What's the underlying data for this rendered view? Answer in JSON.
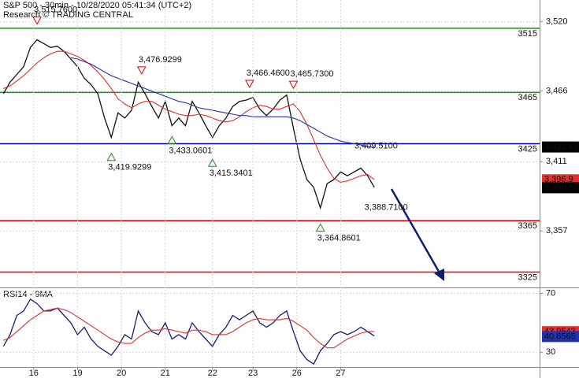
{
  "chart_data": [
    {
      "type": "line",
      "title": "S&P 500 - 30min - 10/28/2020 05:41:34 (UTC+2)",
      "subtitle": "Research © TRADING CENTRAL",
      "x": [
        0,
        2,
        4,
        6,
        8,
        10,
        12,
        14,
        16,
        18,
        20,
        22,
        24,
        26,
        28,
        30,
        32,
        34,
        36,
        38,
        40,
        42,
        44,
        46,
        48,
        50,
        52,
        54,
        56,
        58,
        60,
        62,
        64,
        66,
        68,
        70,
        72,
        74,
        76,
        78,
        80,
        82,
        84,
        86,
        88,
        90,
        92,
        94,
        96,
        98,
        100,
        102,
        104,
        106,
        108,
        110
      ],
      "xlim": [
        -1,
        159
      ],
      "ylim": [
        3313,
        3537
      ],
      "yticks": [
        {
          "value": 3520,
          "label": "3,520"
        },
        {
          "value": 3466,
          "label": "3,466"
        },
        {
          "value": 3411,
          "label": "3,411"
        },
        {
          "value": 3357,
          "label": "3,357"
        }
      ],
      "grid": true,
      "series": [
        {
          "color": "#111111",
          "values": [
            3464,
            3473,
            3479,
            3485,
            3500,
            3506,
            3503,
            3500,
            3501,
            3497,
            3491,
            3485,
            3476,
            3471,
            3464,
            3445,
            3430,
            3449,
            3445,
            3451,
            3473,
            3464,
            3454,
            3445,
            3458,
            3439,
            3445,
            3439,
            3458,
            3449,
            3439,
            3430,
            3439,
            3445,
            3454,
            3458,
            3459,
            3461,
            3452,
            3447,
            3452,
            3459,
            3463,
            3437,
            3413,
            3397,
            3391,
            3375,
            3394,
            3397,
            3403,
            3400,
            3403,
            3406,
            3400,
            3391
          ]
        },
        {
          "color": "#e03030",
          "values": [
            3468,
            3470,
            3474,
            3478,
            3483,
            3488,
            3492,
            3495,
            3497,
            3497,
            3495,
            3493,
            3490,
            3486,
            3481,
            3475,
            3468,
            3460,
            3456,
            3453,
            3456,
            3458,
            3458,
            3455,
            3452,
            3450,
            3448,
            3447,
            3447,
            3448,
            3447,
            3445,
            3443,
            3442,
            3443,
            3446,
            3450,
            3453,
            3455,
            3454,
            3452,
            3452,
            3454,
            3456,
            3450,
            3440,
            3428,
            3416,
            3406,
            3398,
            3395,
            3396,
            3398,
            3400,
            3401,
            3397
          ]
        },
        {
          "color": "#2233aa",
          "values": [
            null,
            null,
            null,
            null,
            null,
            null,
            null,
            null,
            null,
            null,
            3492,
            3491,
            3489,
            3487,
            3484,
            3481,
            3478,
            3476,
            3474,
            3472,
            3470,
            3468,
            3466,
            3464,
            3462,
            3460,
            3458,
            3457,
            3455,
            3453,
            3452,
            3451,
            3450,
            3449,
            3448,
            3447,
            3447,
            3446,
            3446,
            3446,
            3446,
            3446,
            3446,
            3445,
            3443,
            3440,
            3437,
            3434,
            3431,
            3429,
            3427,
            3426,
            3425,
            3424,
            3423,
            3422
          ]
        }
      ],
      "levels": [
        {
          "value": 3515,
          "color": "#1e8c1e"
        },
        {
          "value": 3465,
          "color": "#1e8c1e"
        },
        {
          "value": 3425,
          "color": "#0000aa"
        },
        {
          "value": 3365,
          "color": "#e00000"
        },
        {
          "value": 3325,
          "color": "#e00000"
        }
      ],
      "annotations": [
        {
          "label": "3,515.7600",
          "x": 10,
          "value": 3515.76,
          "position": "above",
          "marker": "down"
        },
        {
          "label": "3,476.9299",
          "x": 41,
          "value": 3476.9299,
          "position": "above",
          "marker": "down"
        },
        {
          "label": "3,466.4600",
          "x": 73,
          "value": 3466.46,
          "position": "above",
          "marker": "down"
        },
        {
          "label": "3,465.7300",
          "x": 86,
          "value": 3465.73,
          "position": "above",
          "marker": "down"
        },
        {
          "label": "3,433.0601",
          "x": 50,
          "value": 3433.0601,
          "position": "below",
          "marker": "up"
        },
        {
          "label": "3,419.9299",
          "x": 32,
          "value": 3419.9299,
          "position": "below",
          "marker": "up"
        },
        {
          "label": "3,415.3401",
          "x": 62,
          "value": 3415.3401,
          "position": "below",
          "marker": "up"
        },
        {
          "label": "3,409.5100",
          "x": 105,
          "value": 3409.51,
          "position": "above"
        },
        {
          "label": "3,388.7100",
          "x": 108,
          "value": 3388.71,
          "position": "below"
        },
        {
          "label": "3,364.8601",
          "x": 94,
          "value": 3364.8601,
          "position": "below",
          "marker": "up"
        }
      ],
      "tags": [
        {
          "value": 3422.47,
          "label": "3,422.47",
          "color": "#000000"
        },
        {
          "value": 3396.9,
          "label": "3,396.9",
          "color": "#e03030"
        },
        {
          "value": 3390.68,
          "label": "3,390.68",
          "color": "#000000"
        }
      ]
    },
    {
      "type": "line",
      "title": "RSI14 - 9MA",
      "x": [
        0,
        2,
        4,
        6,
        8,
        10,
        12,
        14,
        16,
        18,
        20,
        22,
        24,
        26,
        28,
        30,
        32,
        34,
        36,
        38,
        40,
        42,
        44,
        46,
        48,
        50,
        52,
        54,
        56,
        58,
        60,
        62,
        64,
        66,
        68,
        70,
        72,
        74,
        76,
        78,
        80,
        82,
        84,
        86,
        88,
        90,
        92,
        94,
        96,
        98,
        100,
        102,
        104,
        106,
        108,
        110
      ],
      "xlim": [
        -1,
        159
      ],
      "xticks": [
        {
          "value": 9,
          "label": "16"
        },
        {
          "value": 22,
          "label": "19"
        },
        {
          "value": 35,
          "label": "20"
        },
        {
          "value": 48,
          "label": "21"
        },
        {
          "value": 62,
          "label": "22"
        },
        {
          "value": 74,
          "label": "23"
        },
        {
          "value": 87,
          "label": "26"
        },
        {
          "value": 100,
          "label": "27"
        }
      ],
      "ylim": [
        20,
        74
      ],
      "yticks": [
        70,
        30
      ],
      "grid": true,
      "series": [
        {
          "color": "#1a1a7a",
          "values": [
            34,
            42,
            55,
            58,
            66,
            63,
            58,
            58,
            60,
            55,
            50,
            42,
            47,
            39,
            34,
            31,
            28,
            34,
            42,
            39,
            58,
            50,
            44,
            42,
            50,
            39,
            42,
            39,
            50,
            44,
            39,
            34,
            42,
            47,
            55,
            52,
            55,
            58,
            50,
            47,
            50,
            55,
            58,
            44,
            31,
            25,
            22,
            31,
            36,
            42,
            44,
            42,
            44,
            47,
            44,
            41
          ]
        },
        {
          "color": "#e03030",
          "values": [
            38,
            40,
            44,
            48,
            52,
            55,
            58,
            59,
            60,
            59,
            57,
            54,
            51,
            48,
            45,
            42,
            39,
            37,
            36,
            36,
            40,
            43,
            45,
            45,
            46,
            45,
            44,
            43,
            45,
            45,
            44,
            42,
            42,
            42,
            44,
            47,
            50,
            52,
            53,
            52,
            52,
            52,
            53,
            51,
            48,
            45,
            40,
            36,
            33,
            33,
            36,
            39,
            41,
            43,
            44,
            44
          ]
        }
      ],
      "tags": [
        {
          "value": 43.9543,
          "label": "43.9543",
          "color": "#e03030"
        },
        {
          "value": 40.6565,
          "label": "40.6565",
          "color": "#2233aa"
        }
      ]
    }
  ]
}
